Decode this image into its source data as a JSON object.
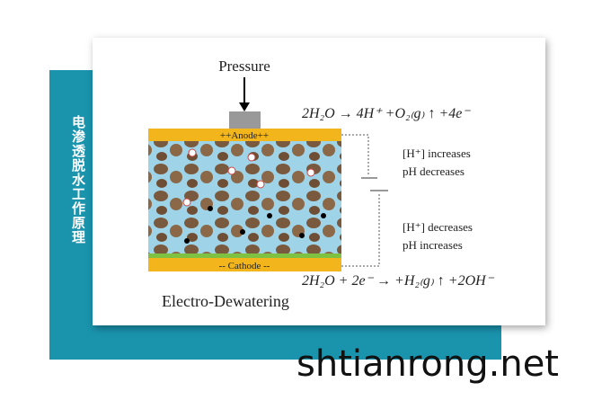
{
  "side_title": "电渗透脱水工作原理",
  "diagram": {
    "pressure_label": "Pressure",
    "anode_label": "++Anode++",
    "cathode_label": "-- Cathode --",
    "caption": "Electro-Dewatering",
    "anode_equation": "2H₂O → 4H⁺ +O₂₍g₎ ↑ +4e⁻",
    "cathode_equation": "2H₂O + 2e⁻ → +H₂₍g₎ ↑ +2OH⁻",
    "anode_notes": [
      "[H⁺] increases",
      "pH decreases"
    ],
    "cathode_notes": [
      "[H⁺] decreases",
      "pH increases"
    ]
  },
  "watermark": "shtianrong.net"
}
